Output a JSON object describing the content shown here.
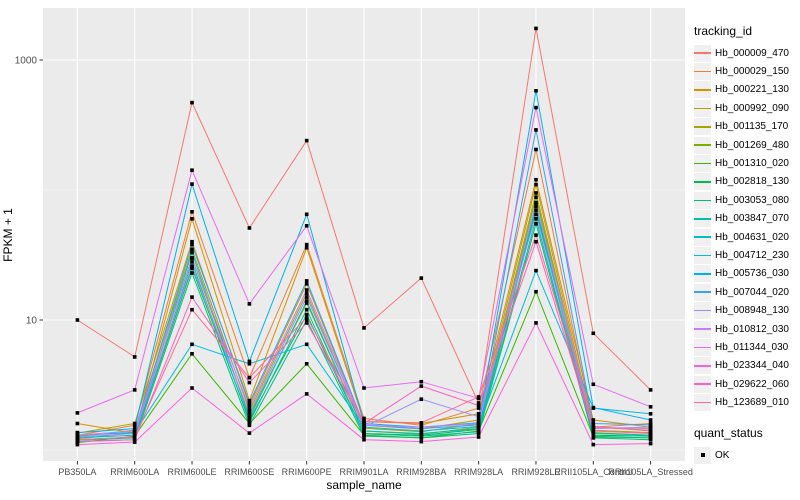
{
  "axes": {
    "x_title": "sample_name",
    "y_title": "FPKM + 1"
  },
  "legend": {
    "tracking_title": "tracking_id",
    "quant_title": "quant_status",
    "quant_items": [
      {
        "label": "OK"
      }
    ]
  },
  "colors": {
    "background": "#FFFFFF",
    "panel_bg": "#EBEBEB",
    "grid_major": "#FFFFFF",
    "grid_minor": "#F7F7F7",
    "axis_text": "#4D4D4D",
    "tick_mark": "#333333",
    "point": "#000000",
    "legend_key_bg": "#F0F0F0"
  },
  "chart_data": {
    "type": "line",
    "title": "",
    "xlabel": "sample_name",
    "ylabel": "FPKM + 1",
    "y_scale": "log10",
    "y_major_breaks": [
      10,
      1000
    ],
    "y_minor_breaks": [
      1,
      100
    ],
    "y_tick_labels": [
      "10",
      "1000"
    ],
    "ylim": [
      1,
      2500
    ],
    "grid": true,
    "legend_position": "right",
    "marker": "black-square",
    "categories": [
      "PB350LA",
      "RRIM600LA",
      "RRIM600LE",
      "RRIM600SE",
      "RRIM600PE",
      "RRIM901LA",
      "RRIM928BA",
      "RRIM928LA",
      "RRIM928LE",
      "RRII105LA_Control",
      "RRII105LA_Stressed"
    ],
    "series": [
      {
        "name": "Hb_000009_470",
        "color": "#F8766D",
        "values": [
          10,
          5.2,
          470,
          51,
          240,
          8.7,
          21,
          2.3,
          1750,
          7.9,
          2.9
        ]
      },
      {
        "name": "Hb_000029_150",
        "color": "#EA8331",
        "values": [
          1.3,
          1.55,
          68,
          3.6,
          38,
          1.75,
          1.55,
          2.1,
          205,
          1.5,
          1.6
        ]
      },
      {
        "name": "Hb_000221_130",
        "color": "#D89000",
        "values": [
          1.6,
          1.35,
          60,
          2.4,
          36,
          1.65,
          1.6,
          1.9,
          120,
          1.7,
          1.5
        ]
      },
      {
        "name": "Hb_000992_090",
        "color": "#C09B00",
        "values": [
          1.35,
          1.6,
          40,
          2.2,
          19,
          1.55,
          1.45,
          1.7,
          110,
          1.5,
          1.42
        ]
      },
      {
        "name": "Hb_001135_170",
        "color": "#A3A500",
        "values": [
          1.27,
          1.42,
          35,
          2.0,
          16,
          1.47,
          1.38,
          1.6,
          95,
          1.42,
          1.36
        ]
      },
      {
        "name": "Hb_001269_480",
        "color": "#7CAE00",
        "values": [
          1.22,
          1.36,
          30,
          1.85,
          13.5,
          1.4,
          1.32,
          1.5,
          88,
          1.36,
          1.3
        ]
      },
      {
        "name": "Hb_001310_020",
        "color": "#39B600",
        "values": [
          1.14,
          1.28,
          5.5,
          1.6,
          4.6,
          1.3,
          1.24,
          1.4,
          16.5,
          1.26,
          1.24
        ]
      },
      {
        "name": "Hb_002818_130",
        "color": "#00BB4E",
        "values": [
          1.2,
          1.26,
          25,
          1.7,
          11,
          1.34,
          1.3,
          1.44,
          70,
          1.3,
          1.28
        ]
      },
      {
        "name": "Hb_003053_080",
        "color": "#00BF7D",
        "values": [
          1.16,
          1.2,
          23,
          1.55,
          10,
          1.28,
          1.24,
          1.34,
          55,
          1.24,
          1.2
        ]
      },
      {
        "name": "Hb_003847_070",
        "color": "#00C1A3",
        "values": [
          1.19,
          1.24,
          28,
          1.64,
          12,
          1.33,
          1.28,
          1.38,
          60,
          1.28,
          1.24
        ]
      },
      {
        "name": "Hb_004631_020",
        "color": "#00BFC4",
        "values": [
          1.24,
          1.3,
          33,
          1.76,
          14,
          1.4,
          1.34,
          1.46,
          75,
          1.34,
          1.3
        ]
      },
      {
        "name": "Hb_004712_230",
        "color": "#00BAE0",
        "values": [
          1.3,
          1.36,
          6.5,
          4.6,
          6.5,
          1.5,
          1.4,
          1.52,
          24,
          2.1,
          1.9
        ]
      },
      {
        "name": "Hb_005736_030",
        "color": "#00B0F6",
        "values": [
          1.36,
          1.46,
          111,
          4.8,
          65,
          1.6,
          1.5,
          1.62,
          580,
          2.12,
          1.7
        ]
      },
      {
        "name": "Hb_007044_020",
        "color": "#35A2FF",
        "values": [
          1.3,
          1.4,
          38,
          2.3,
          20,
          1.56,
          1.46,
          1.56,
          290,
          1.6,
          1.56
        ]
      },
      {
        "name": "Hb_008948_130",
        "color": "#9590FF",
        "values": [
          1.26,
          1.34,
          26,
          1.9,
          15,
          1.5,
          2.46,
          1.8,
          65,
          1.46,
          1.5
        ]
      },
      {
        "name": "Hb_010812_030",
        "color": "#C77CFF",
        "values": [
          1.3,
          1.4,
          30,
          2.1,
          17,
          1.55,
          1.5,
          1.6,
          80,
          1.5,
          1.46
        ]
      },
      {
        "name": "Hb_011344_030",
        "color": "#E76BF3",
        "values": [
          1.93,
          2.9,
          142,
          13.3,
          53,
          3.0,
          3.35,
          2.5,
          430,
          3.2,
          2.15
        ]
      },
      {
        "name": "Hb_023344_040",
        "color": "#FA62DB",
        "values": [
          1.1,
          1.15,
          3.0,
          1.35,
          2.7,
          1.2,
          1.16,
          1.26,
          9.5,
          1.1,
          1.12
        ]
      },
      {
        "name": "Hb_029622_060",
        "color": "#FF62BC",
        "values": [
          1.16,
          1.2,
          15,
          3.3,
          9.5,
          1.6,
          3.1,
          2.2,
          40,
          1.4,
          1.34
        ]
      },
      {
        "name": "Hb_123689_010",
        "color": "#FF6A98",
        "values": [
          1.2,
          1.26,
          12,
          3.6,
          10.5,
          1.66,
          1.62,
          2.56,
          45,
          1.52,
          1.4
        ]
      }
    ]
  }
}
